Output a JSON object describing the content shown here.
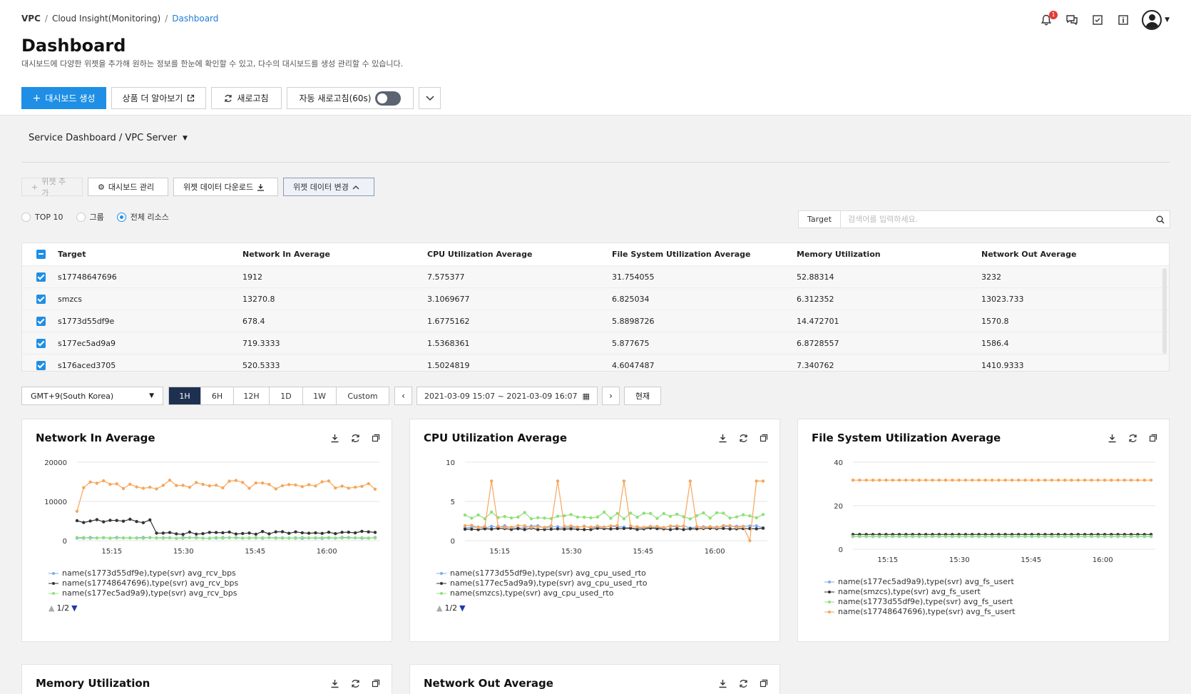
{
  "breadcrumb": {
    "root": "VPC",
    "mid": "Cloud Insight(Monitoring)",
    "current": "Dashboard",
    "sep": "/"
  },
  "header": {
    "notif_count": "1"
  },
  "page": {
    "title": "Dashboard",
    "subtitle": "대시보드에 다양한 위젯을 추가해 원하는 정보를 한눈에 확인할 수 있고, 다수의 대시보드를 생성 관리할 수 있습니다."
  },
  "toolbar": {
    "create": "대시보드 생성",
    "learn_more": "상품 더 알아보기",
    "refresh": "새로고침",
    "auto_refresh": "자동 새로고침(60s)"
  },
  "dashboard_select": "Service Dashboard / VPC Server",
  "widget_toolbar": {
    "add": "위젯 추가",
    "manage": "대시보드 관리",
    "download": "위젯 데이터 다운로드",
    "change": "위젯 데이터 변경"
  },
  "radios": [
    "TOP 10",
    "그룹",
    "전체 리소스"
  ],
  "search": {
    "label": "Target",
    "placeholder": "검색어를 입력하세요."
  },
  "table": {
    "headers": [
      "Target",
      "Network In Average",
      "CPU Utilization Average",
      "File System Utilization Average",
      "Memory Utilization",
      "Network Out Average"
    ],
    "rows": [
      [
        "s17748647696",
        "1912",
        "7.575377",
        "31.754055",
        "52.88314",
        "3232"
      ],
      [
        "smzcs",
        "13270.8",
        "3.1069677",
        "6.825034",
        "6.312352",
        "13023.733"
      ],
      [
        "s1773d55df9e",
        "678.4",
        "1.6775162",
        "5.8898726",
        "14.472701",
        "1570.8"
      ],
      [
        "s177ec5ad9a9",
        "719.3333",
        "1.5368361",
        "5.877675",
        "6.8728557",
        "1586.4"
      ],
      [
        "s176aced3705",
        "520.5333",
        "1.5024819",
        "4.6047487",
        "7.340762",
        "1410.9333"
      ]
    ]
  },
  "timebar": {
    "timezone": "GMT+9(South Korea)",
    "ranges": [
      "1H",
      "6H",
      "12H",
      "1D",
      "1W",
      "Custom"
    ],
    "selected": "1H",
    "period": "2021-03-09 15:07 ~ 2021-03-09 16:07",
    "now": "현재"
  },
  "colors": {
    "blue": "#7fa8ee",
    "black": "#333333",
    "green": "#8fe07a",
    "orange": "#f7a65a",
    "purple": "#8a7be8"
  },
  "widgets": [
    {
      "title": "Network In Average",
      "legend": [
        "name(s1773d55df9e),type(svr) avg_rcv_bps",
        "name(s17748647696),type(svr) avg_rcv_bps",
        "name(s177ec5ad9a9),type(svr) avg_rcv_bps"
      ],
      "pager": "1/2"
    },
    {
      "title": "CPU Utilization Average",
      "legend": [
        "name(s1773d55df9e),type(svr) avg_cpu_used_rto",
        "name(s177ec5ad9a9),type(svr) avg_cpu_used_rto",
        "name(smzcs),type(svr) avg_cpu_used_rto"
      ],
      "pager": "1/2"
    },
    {
      "title": "File System Utilization Average",
      "legend": [
        "name(s177ec5ad9a9),type(svr) avg_fs_usert",
        "name(smzcs),type(svr) avg_fs_usert",
        "name(s1773d55df9e),type(svr) avg_fs_usert",
        "name(s17748647696),type(svr) avg_fs_usert"
      ]
    },
    {
      "title": "Memory Utilization"
    },
    {
      "title": "Network Out Average"
    }
  ],
  "chart_data": [
    {
      "type": "line",
      "title": "Network In Average",
      "ylim": [
        0,
        20000
      ],
      "yticks": [
        "0",
        "10000",
        "20000"
      ],
      "xticks": [
        "15:15",
        "15:30",
        "15:45",
        "16:00"
      ],
      "series": [
        {
          "name": "name(s1773d55df9e),type(svr) avg_rcv_bps",
          "color": "#7fa8ee",
          "approx": 700
        },
        {
          "name": "name(s17748647696),type(svr) avg_rcv_bps",
          "color": "#333333",
          "approx": "5000 until ~15:22 then ~2000"
        },
        {
          "name": "name(s177ec5ad9a9),type(svr) avg_rcv_bps",
          "color": "#8fe07a",
          "approx": 700
        },
        {
          "color": "#f7a65a",
          "approx": 14500
        }
      ]
    },
    {
      "type": "line",
      "title": "CPU Utilization Average",
      "ylim": [
        0,
        10
      ],
      "yticks": [
        "0",
        "5",
        "10"
      ],
      "xticks": [
        "15:15",
        "15:30",
        "15:45",
        "16:00"
      ],
      "series": [
        {
          "name": "name(s1773d55df9e),type(svr) avg_cpu_used_rto",
          "color": "#7fa8ee",
          "approx": 1.7
        },
        {
          "name": "name(s177ec5ad9a9),type(svr) avg_cpu_used_rto",
          "color": "#333333",
          "approx": 1.5
        },
        {
          "name": "name(smzcs),type(svr) avg_cpu_used_rto",
          "color": "#8fe07a",
          "approx": 3.1
        },
        {
          "color": "#f7a65a",
          "approx": "1.7 with periodic spikes to ~7.6"
        }
      ]
    },
    {
      "type": "line",
      "title": "File System Utilization Average",
      "ylim": [
        0,
        40
      ],
      "yticks": [
        "0",
        "20",
        "40"
      ],
      "xticks": [
        "15:15",
        "15:30",
        "15:45",
        "16:00"
      ],
      "series": [
        {
          "name": "name(s177ec5ad9a9),type(svr) avg_fs_usert",
          "color": "#7fa8ee",
          "approx": 5.9
        },
        {
          "name": "name(smzcs),type(svr) avg_fs_usert",
          "color": "#333333",
          "approx": 6.8
        },
        {
          "name": "name(s1773d55df9e),type(svr) avg_fs_usert",
          "color": "#8fe07a",
          "approx": 5.9
        },
        {
          "name": "name(s17748647696),type(svr) avg_fs_usert",
          "color": "#f7a65a",
          "approx": 31.75
        }
      ]
    }
  ]
}
